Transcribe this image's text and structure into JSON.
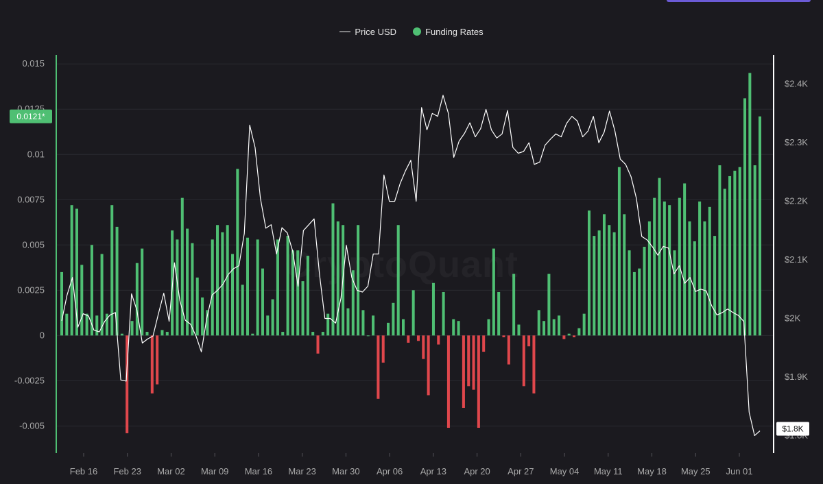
{
  "watermark": "CryptoQuant",
  "colors": {
    "positive_bar": "#4fbf73",
    "negative_bar": "#e0474c",
    "price_line": "#ffffff",
    "background": "#1b1a1f",
    "grid": "#2b2a30",
    "axis_text": "#aaaaaa"
  },
  "legend": {
    "price_label": "Price USD",
    "funding_label": "Funding Rates"
  },
  "chart_data": {
    "type": "bar",
    "legend_position": "top-center",
    "grid": true,
    "x_ticks": [
      "Feb 16",
      "Feb 23",
      "Mar 02",
      "Mar 09",
      "Mar 16",
      "Mar 23",
      "Mar 30",
      "Apr 06",
      "Apr 13",
      "Apr 20",
      "Apr 27",
      "May 04",
      "May 11",
      "May 18",
      "May 25",
      "Jun 01"
    ],
    "y_left": {
      "ticks": [
        "0.015",
        "0.0125",
        "0.01",
        "0.0075",
        "0.005",
        "0.0025",
        "0",
        "-0.0025",
        "-0.005"
      ],
      "range": [
        -0.0065,
        0.0155
      ],
      "current_label": "0.0121*"
    },
    "y_right": {
      "ticks": [
        "$2.4K",
        "$2.3K",
        "$2.2K",
        "$2.1K",
        "$2K",
        "$1.9K",
        "$1.8K"
      ],
      "range": [
        1770,
        2450
      ],
      "current_label": "$1.8K"
    },
    "series": [
      {
        "name": "Funding Rates",
        "type": "bar",
        "values": [
          0.0035,
          0.0012,
          0.0072,
          0.007,
          0.0039,
          0.0012,
          0.005,
          0.0011,
          0.0045,
          0.0012,
          0.0072,
          0.006,
          0.0001,
          -0.0054,
          0.0008,
          0.004,
          0.0048,
          0.0002,
          -0.0032,
          -0.0027,
          0.0003,
          0.0002,
          0.0058,
          0.0053,
          0.0076,
          0.0059,
          0.0051,
          0.0032,
          0.0021,
          0.0014,
          0.0053,
          0.0061,
          0.0057,
          0.0061,
          0.0045,
          0.0092,
          0.0028,
          0.0054,
          0.0001,
          0.0053,
          0.0037,
          0.0011,
          0.002,
          0.0053,
          0.0002,
          0.0055,
          0.0047,
          0.0047,
          0.003,
          0.0044,
          0.0002,
          -0.001,
          0.0002,
          0.0012,
          0.0073,
          0.0063,
          0.0061,
          0.0015,
          0.0036,
          0.0061,
          0.0014,
          0.0,
          0.0011,
          -0.0035,
          -0.0015,
          0.0007,
          0.0018,
          0.0061,
          0.0009,
          -0.0004,
          0.0025,
          -0.0003,
          -0.0013,
          -0.0033,
          0.0029,
          -0.0005,
          0.0024,
          -0.0051,
          0.0009,
          0.0008,
          -0.004,
          -0.0028,
          -0.003,
          -0.0051,
          -0.0009,
          0.0009,
          0.0048,
          0.0024,
          -0.0001,
          -0.0016,
          0.0034,
          0.0006,
          -0.0028,
          -0.0006,
          -0.0032,
          0.0014,
          0.0008,
          0.0034,
          0.0009,
          0.0011,
          -0.0002,
          0.0001,
          -0.0001,
          0.0004,
          0.0012,
          0.0069,
          0.0055,
          0.0058,
          0.0067,
          0.0061,
          0.0057,
          0.0093,
          0.0067,
          0.0047,
          0.0035,
          0.0037,
          0.0049,
          0.0063,
          0.0076,
          0.0087,
          0.0074,
          0.0072,
          0.0047,
          0.0076,
          0.0084,
          0.0063,
          0.0052,
          0.0074,
          0.0063,
          0.0071,
          0.0055,
          0.0094,
          0.0081,
          0.0088,
          0.0091,
          0.0093,
          0.0131,
          0.0145,
          0.0094,
          0.0121
        ]
      },
      {
        "name": "Price USD",
        "type": "line",
        "values": [
          1996,
          2040,
          2070,
          1985,
          2008,
          2004,
          1980,
          1977,
          1995,
          2006,
          2010,
          1895,
          1893,
          2042,
          2014,
          1958,
          1965,
          1970,
          2008,
          2043,
          1995,
          2095,
          2030,
          1997,
          1990,
          1970,
          1943,
          2000,
          2040,
          2048,
          2058,
          2075,
          2085,
          2090,
          2145,
          2330,
          2292,
          2205,
          2154,
          2160,
          2110,
          2155,
          2146,
          2115,
          2055,
          2150,
          2160,
          2170,
          2075,
          2000,
          2000,
          1992,
          2035,
          2125,
          2070,
          2048,
          2045,
          2055,
          2110,
          2110,
          2245,
          2200,
          2200,
          2230,
          2252,
          2270,
          2200,
          2360,
          2322,
          2350,
          2345,
          2381,
          2350,
          2275,
          2303,
          2316,
          2334,
          2310,
          2324,
          2357,
          2322,
          2308,
          2315,
          2355,
          2292,
          2282,
          2285,
          2300,
          2263,
          2267,
          2296,
          2306,
          2315,
          2310,
          2333,
          2345,
          2337,
          2310,
          2320,
          2345,
          2300,
          2318,
          2354,
          2320,
          2272,
          2263,
          2242,
          2205,
          2140,
          2134,
          2122,
          2108,
          2123,
          2120,
          2076,
          2090,
          2060,
          2070,
          2046,
          2050,
          2047,
          2022,
          2006,
          2010,
          2016,
          2010,
          2005,
          1995,
          1840,
          1800,
          1808
        ]
      }
    ]
  }
}
